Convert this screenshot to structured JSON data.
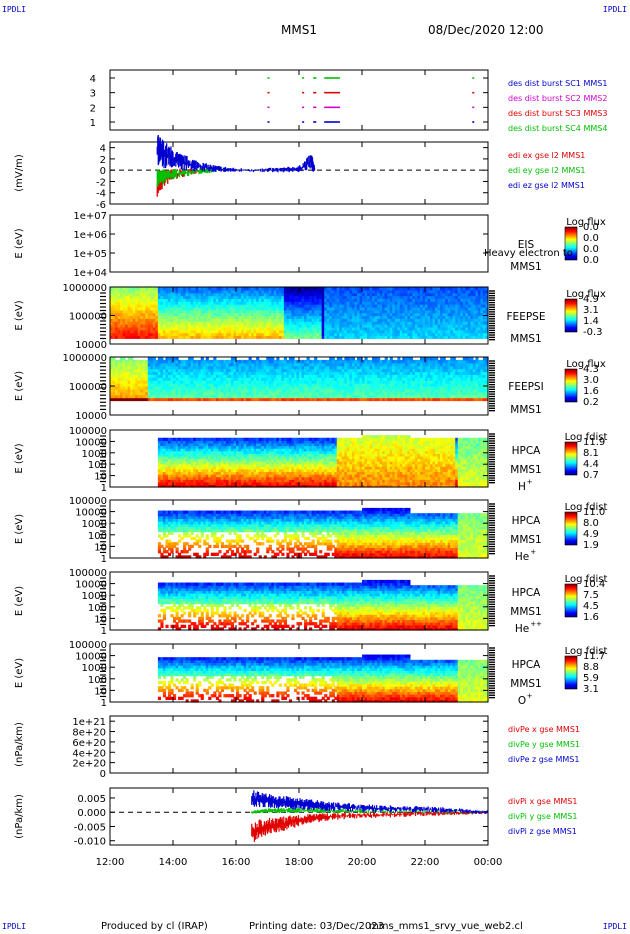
{
  "header": {
    "corner_label": "IPDLI",
    "spacecraft": "MMS1",
    "datetime": "08/Dec/2020 12:00"
  },
  "footer": {
    "produced": "Produced by cl (IRAP)",
    "printing": "Printing date: 03/Dec/2023",
    "script": "mms_mms1_srvy_vue_web2.cl"
  },
  "colors": {
    "red": "#e00000",
    "magenta": "#d000d0",
    "green": "#00c000",
    "blue": "#0000d0"
  },
  "chart_data": [
    {
      "type": "line",
      "id": "burst",
      "ylim": [
        0.5,
        4.5
      ],
      "yticks": [
        "1",
        "2",
        "3",
        "4"
      ],
      "legend": [
        {
          "text": "des dist burst SC1 MMS1",
          "color": "#0000d0"
        },
        {
          "text": "des dist burst SC2 MMS2",
          "color": "#d000d0"
        },
        {
          "text": "des dist burst SC3 MMS3",
          "color": "#e00000"
        },
        {
          "text": "des dist burst SC4 MMS4",
          "color": "#00c000"
        }
      ],
      "intervals": [
        {
          "level": 4,
          "color": "#00c000",
          "x": [
            [
              17.0,
              17.05
            ],
            [
              18.1,
              18.15
            ],
            [
              18.45,
              18.55
            ],
            [
              18.8,
              19.3
            ],
            [
              23.5,
              23.55
            ]
          ]
        },
        {
          "level": 3,
          "color": "#e00000",
          "x": [
            [
              17.0,
              17.05
            ],
            [
              18.1,
              18.15
            ],
            [
              18.45,
              18.55
            ],
            [
              18.8,
              19.3
            ],
            [
              23.5,
              23.55
            ]
          ]
        },
        {
          "level": 2,
          "color": "#d000d0",
          "x": [
            [
              17.0,
              17.05
            ],
            [
              18.1,
              18.15
            ],
            [
              18.45,
              18.55
            ],
            [
              18.8,
              19.3
            ],
            [
              23.5,
              23.55
            ]
          ]
        },
        {
          "level": 1,
          "color": "#0000d0",
          "x": [
            [
              17.0,
              17.05
            ],
            [
              18.1,
              18.15
            ],
            [
              18.45,
              18.55
            ],
            [
              18.8,
              19.3
            ],
            [
              23.5,
              23.55
            ]
          ]
        }
      ]
    },
    {
      "type": "line",
      "id": "efield",
      "ylabel": "(mV/m)",
      "ylim": [
        -6,
        5
      ],
      "yticks": [
        "-6",
        "-4",
        "-2",
        "0",
        "2",
        "4"
      ],
      "legend": [
        {
          "text": "edi ex gse l2 MMS1",
          "color": "#e00000"
        },
        {
          "text": "edi ey gse l2 MMS1",
          "color": "#00c000"
        },
        {
          "text": "edi ez gse l2 MMS1",
          "color": "#0000d0"
        }
      ],
      "series": [
        {
          "name": "edi ex gse l2 MMS1",
          "color": "#e00000",
          "x": [
            13.5,
            13.7,
            14.0,
            14.5,
            15.0
          ],
          "y": [
            -2.5,
            -1.5,
            -0.8,
            -0.3,
            0.1
          ]
        },
        {
          "name": "edi ey gse l2 MMS1",
          "color": "#00c000",
          "x": [
            13.5,
            13.8,
            14.2,
            14.8,
            15.3
          ],
          "y": [
            -1.5,
            -1.0,
            -0.5,
            -0.2,
            0.0
          ]
        },
        {
          "name": "edi ez gse l2 MMS1",
          "color": "#0000d0",
          "x": [
            13.5,
            13.8,
            14.2,
            14.6,
            15.0,
            15.5,
            16.0,
            17.0,
            17.6,
            18.0,
            18.4,
            18.5
          ],
          "y": [
            3.5,
            2.5,
            1.5,
            1.0,
            0.5,
            0.2,
            0.0,
            0.0,
            0.1,
            0.2,
            1.5,
            0.0
          ]
        }
      ]
    },
    {
      "type": "heatmap",
      "id": "eis",
      "ylabel": "E (eV)",
      "yticks": [
        "1e+04",
        "1e+05",
        "1e+06",
        "1e+07"
      ],
      "label": [
        "EIS",
        "MMS1"
      ],
      "overlay": "Heavy electron to",
      "cbar_title": "Log flux",
      "cbar_ticks": [
        "0.0",
        "0.0",
        "0.0",
        "0.0"
      ]
    },
    {
      "type": "heatmap",
      "id": "feepse",
      "ylabel": "E (eV)",
      "yticks": [
        "10000",
        "100000",
        "1000000"
      ],
      "label": [
        "FEEPSE",
        "MMS1"
      ],
      "cbar_title": "Log flux",
      "cbar_ticks": [
        "4.9",
        "3.1",
        "1.4",
        "-0.3"
      ]
    },
    {
      "type": "heatmap",
      "id": "feepsi",
      "ylabel": "E (eV)",
      "yticks": [
        "10000",
        "100000",
        "1000000"
      ],
      "label": [
        "FEEPSI",
        "MMS1"
      ],
      "cbar_title": "Log flux",
      "cbar_ticks": [
        "4.3",
        "3.0",
        "1.6",
        "0.2"
      ]
    },
    {
      "type": "heatmap",
      "id": "hpca_h",
      "ylabel": "E (eV)",
      "yticks": [
        "1",
        "10",
        "100",
        "1000",
        "10000",
        "100000"
      ],
      "label": [
        "HPCA",
        "MMS1"
      ],
      "species": "H",
      "species_sup": "+",
      "cbar_title": "Log fdist",
      "cbar_ticks": [
        "11.9",
        "8.1",
        "4.4",
        "0.7"
      ]
    },
    {
      "type": "heatmap",
      "id": "hpca_he",
      "ylabel": "E (eV)",
      "yticks": [
        "1",
        "10",
        "100",
        "1000",
        "10000",
        "100000"
      ],
      "label": [
        "HPCA",
        "MMS1"
      ],
      "species": "He",
      "species_sup": "+",
      "cbar_title": "Log fdist",
      "cbar_ticks": [
        "11.0",
        "8.0",
        "4.9",
        "1.9"
      ]
    },
    {
      "type": "heatmap",
      "id": "hpca_he2",
      "ylabel": "E (eV)",
      "yticks": [
        "1",
        "10",
        "100",
        "1000",
        "10000",
        "100000"
      ],
      "label": [
        "HPCA",
        "MMS1"
      ],
      "species": "He",
      "species_sup": "++",
      "cbar_title": "Log fdist",
      "cbar_ticks": [
        "10.4",
        "7.5",
        "4.5",
        "1.6"
      ]
    },
    {
      "type": "heatmap",
      "id": "hpca_o",
      "ylabel": "E (eV)",
      "yticks": [
        "1",
        "10",
        "100",
        "1000",
        "10000",
        "100000"
      ],
      "label": [
        "HPCA",
        "MMS1"
      ],
      "species": "O",
      "species_sup": "+",
      "cbar_title": "Log fdist",
      "cbar_ticks": [
        "11.7",
        "8.8",
        "5.9",
        "3.1"
      ]
    },
    {
      "type": "line",
      "id": "divpe",
      "ylabel": "(nPa/km)",
      "ylim": [
        0,
        1.1e+21
      ],
      "yticks": [
        "0",
        "2e+20",
        "4e+20",
        "6e+20",
        "8e+20",
        "1e+21"
      ],
      "legend": [
        {
          "text": "divPe x gse MMS1",
          "color": "#e00000"
        },
        {
          "text": "divPe y gse MMS1",
          "color": "#00c000"
        },
        {
          "text": "divPe z gse MMS1",
          "color": "#0000d0"
        }
      ]
    },
    {
      "type": "line",
      "id": "divpi",
      "ylabel": "(nPa/km)",
      "ylim": [
        -0.0115,
        0.0085
      ],
      "yticks": [
        "-0.010",
        "-0.005",
        "0.000",
        "0.005"
      ],
      "legend": [
        {
          "text": "divPi x gse MMS1",
          "color": "#e00000"
        },
        {
          "text": "divPi y gse MMS1",
          "color": "#00c000"
        },
        {
          "text": "divPi z gse MMS1",
          "color": "#0000d0"
        }
      ],
      "series": [
        {
          "name": "divPi x gse MMS1",
          "color": "#e00000",
          "x": [
            16.5,
            17.0,
            17.5,
            18.0,
            18.5,
            19.0,
            20.0,
            21.0,
            22.0,
            23.0,
            24.0
          ],
          "y": [
            -0.007,
            -0.005,
            -0.004,
            -0.003,
            -0.002,
            -0.0015,
            -0.001,
            -0.0008,
            -0.0005,
            -0.0003,
            0.0
          ]
        },
        {
          "name": "divPi y gse MMS1",
          "color": "#00c000",
          "x": [
            16.5,
            17.0,
            17.5,
            18.0,
            19.0,
            20.0,
            22.0,
            24.0
          ],
          "y": [
            0.0,
            0.0005,
            0.0007,
            0.0007,
            0.0005,
            0.0003,
            0.0002,
            0.0
          ]
        },
        {
          "name": "divPi z gse MMS1",
          "color": "#0000d0",
          "x": [
            16.5,
            17.0,
            17.5,
            18.0,
            18.5,
            19.0,
            20.0,
            21.0,
            22.0,
            23.0,
            24.0
          ],
          "y": [
            0.005,
            0.004,
            0.0035,
            0.003,
            0.0025,
            0.002,
            0.0015,
            0.0012,
            0.001,
            0.0006,
            0.0
          ]
        }
      ]
    }
  ],
  "xaxis": {
    "xlim": [
      12,
      24
    ],
    "ticks": [
      {
        "x": 12,
        "label": "12:00"
      },
      {
        "x": 14,
        "label": "14:00"
      },
      {
        "x": 16,
        "label": "16:00"
      },
      {
        "x": 18,
        "label": "18:00"
      },
      {
        "x": 20,
        "label": "20:00"
      },
      {
        "x": 22,
        "label": "22:00"
      },
      {
        "x": 24,
        "label": "00:00"
      }
    ]
  }
}
